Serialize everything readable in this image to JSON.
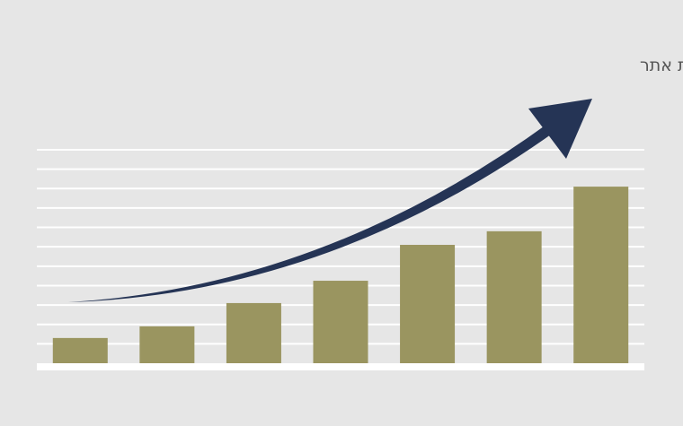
{
  "chart_data": {
    "type": "bar",
    "title": "גידול במכירות בעקבות הקמת אתר",
    "categories": [
      "",
      "",
      "",
      "",
      "",
      "",
      ""
    ],
    "values": [
      13,
      19,
      31,
      42.5,
      61,
      68,
      91
    ],
    "ylim": [
      0,
      110
    ],
    "grid": true,
    "xlabel": "",
    "ylabel": "",
    "annotations": [
      {
        "type": "upward-trend-arrow"
      }
    ],
    "colors": {
      "bar": "#9a9560",
      "arrow": "#253455",
      "grid": "#ffffff",
      "background": "#e6e6e6"
    }
  }
}
